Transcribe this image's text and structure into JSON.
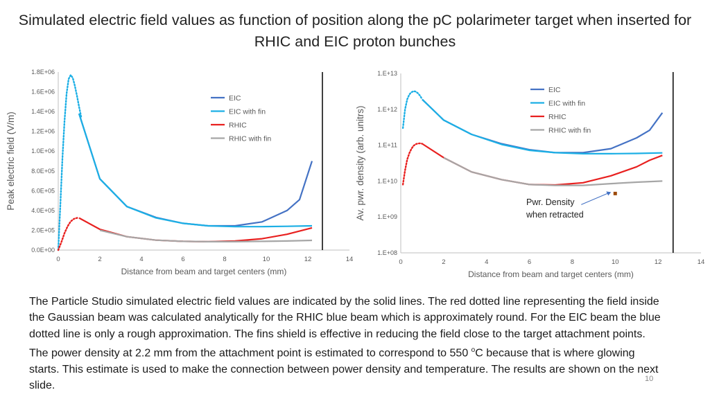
{
  "slide": {
    "title": "Simulated electric field values as function of position along the pC polarimeter target when inserted for RHIC and EIC proton bunches",
    "body_pre": "The Particle Studio simulated electric field values are indicated by the solid lines. The red dotted line representing the field inside the Gaussian beam was calculated analytically for the RHIC blue beam which is approximately round. For the EIC beam the blue dotted line is only a rough approximation. The fins shield is effective in reducing the field close to the target attachment points. The power density at 2.2 mm from the attachment point is estimated to correspond to 550 ",
    "body_sup": "o",
    "body_post": "C because that is where glowing starts. This estimate is used to make the connection between power density and temperature. The results are shown on the next slide.",
    "page_number": "10"
  },
  "colors": {
    "eic": "#4472C4",
    "eic_fin": "#1CAFE5",
    "rhic": "#E8201F",
    "rhic_fin": "#A6A6A6",
    "marker": "#9C4A0A",
    "axis": "#BFBFBF",
    "target_line": "#000000"
  },
  "chart_data": [
    {
      "type": "line",
      "xlabel": "Distance from beam and target centers (mm)",
      "ylabel": "Peak electric field (V/m)",
      "xlim": [
        0,
        14
      ],
      "ylim": [
        0,
        1800000
      ],
      "xticks": [
        "0",
        "2",
        "4",
        "6",
        "8",
        "10",
        "12",
        "14"
      ],
      "yticks": [
        "0.0E+00",
        "2.0E+05",
        "4.0E+05",
        "6.0E+05",
        "8.0E+05",
        "1.0E+06",
        "1.2E+06",
        "1.4E+06",
        "1.6E+06",
        "1.8E+06"
      ],
      "vertical_line_x": 12.7,
      "legend_position": "top-right",
      "series": [
        {
          "name": "EIC",
          "color_key": "eic",
          "x": [
            1.0,
            2.0,
            3.3,
            4.7,
            6.0,
            7.2,
            8.5,
            9.8,
            11.0,
            11.6,
            12.2
          ],
          "y": [
            1380000,
            720000,
            440000,
            330000,
            270000,
            245000,
            245000,
            285000,
            400000,
            510000,
            900000
          ]
        },
        {
          "name": "EIC with fin",
          "color_key": "eic_fin",
          "x": [
            1.0,
            2.0,
            3.3,
            4.7,
            6.0,
            7.2,
            8.5,
            9.8,
            11.0,
            12.2
          ],
          "y": [
            1380000,
            720000,
            440000,
            325000,
            270000,
            245000,
            237000,
            237000,
            240000,
            245000
          ]
        },
        {
          "name": "RHIC",
          "color_key": "rhic",
          "x": [
            1.0,
            2.0,
            3.3,
            4.7,
            6.0,
            7.2,
            8.5,
            9.8,
            11.0,
            12.2
          ],
          "y": [
            325000,
            210000,
            135000,
            100000,
            88000,
            85000,
            92000,
            115000,
            160000,
            225000
          ]
        },
        {
          "name": "RHIC with fin",
          "color_key": "rhic_fin",
          "x": [
            2.0,
            3.3,
            4.7,
            6.0,
            7.2,
            8.5,
            9.8,
            11.0,
            12.2
          ],
          "y": [
            200000,
            135000,
            100000,
            88000,
            85000,
            85000,
            88000,
            92000,
            98000
          ]
        },
        {
          "name": "",
          "color_key": "eic_fin",
          "dotted": true,
          "x": [
            0,
            0.1,
            0.2,
            0.3,
            0.4,
            0.5,
            0.6,
            0.7,
            0.8,
            0.9,
            1.0,
            1.1
          ],
          "y": [
            0,
            450000,
            920000,
            1300000,
            1580000,
            1730000,
            1770000,
            1740000,
            1660000,
            1560000,
            1450000,
            1350000
          ]
        },
        {
          "name": "",
          "color_key": "rhic",
          "dotted": true,
          "x": [
            0,
            0.15,
            0.3,
            0.45,
            0.6,
            0.75,
            0.9,
            1.0
          ],
          "y": [
            0,
            80000,
            170000,
            240000,
            290000,
            315000,
            325000,
            325000
          ]
        }
      ]
    },
    {
      "type": "line",
      "xlabel": "Distance from beam and target centers (mm)",
      "ylabel": "Av. pwr. density (arb. unitrs)",
      "xlim": [
        0,
        14
      ],
      "ylim": [
        100000000,
        10000000000000
      ],
      "yscale": "log",
      "xticks": [
        "0",
        "2",
        "4",
        "6",
        "8",
        "10",
        "12",
        "14"
      ],
      "yticks": [
        "1.E+08",
        "1.E+09",
        "1.E+10",
        "1.E+11",
        "1.E+12",
        "1.E+13"
      ],
      "vertical_line_x": 12.7,
      "legend_position": "top-right",
      "annotation": "Pwr. Density when retracted",
      "annotation_point": {
        "x": 10.0,
        "y": 4500000000
      },
      "series": [
        {
          "name": "EIC",
          "color_key": "eic",
          "x": [
            1.0,
            2.0,
            3.3,
            4.7,
            6.0,
            7.2,
            8.5,
            9.8,
            11.0,
            11.6,
            12.2
          ],
          "y": [
            1900000000000,
            500000000000,
            200000000000,
            110000000000,
            75000000000,
            62000000000,
            62000000000,
            80000000000,
            160000000000,
            260000000000,
            800000000000
          ]
        },
        {
          "name": "EIC with fin",
          "color_key": "eic_fin",
          "x": [
            1.0,
            2.0,
            3.3,
            4.7,
            6.0,
            7.2,
            8.5,
            9.8,
            11.0,
            12.2
          ],
          "y": [
            1900000000000,
            500000000000,
            200000000000,
            105000000000,
            72000000000,
            62000000000,
            58000000000,
            58000000000,
            59000000000,
            61000000000
          ]
        },
        {
          "name": "RHIC",
          "color_key": "rhic",
          "x": [
            1.0,
            2.0,
            3.3,
            4.7,
            6.0,
            7.2,
            8.5,
            9.8,
            11.0,
            11.6,
            12.2
          ],
          "y": [
            110000000000,
            45000000000,
            18000000000,
            11000000000,
            8000000000,
            7800000000,
            9000000000,
            14000000000,
            25000000000,
            38000000000,
            52000000000
          ]
        },
        {
          "name": "RHIC with fin",
          "color_key": "rhic_fin",
          "x": [
            2.0,
            3.3,
            4.7,
            6.0,
            7.2,
            8.5,
            9.8,
            11.0,
            12.2
          ],
          "y": [
            45000000000,
            18000000000,
            11000000000,
            8000000000,
            7600000000,
            7600000000,
            8500000000,
            9300000000,
            10000000000
          ]
        },
        {
          "name": "",
          "color_key": "eic_fin",
          "dotted": true,
          "x": [
            0.1,
            0.2,
            0.3,
            0.4,
            0.5,
            0.6,
            0.7,
            0.8,
            0.9,
            1.0
          ],
          "y": [
            300000000000,
            1000000000000,
            1900000000000,
            2600000000000,
            3000000000000,
            3200000000000,
            3100000000000,
            2800000000000,
            2400000000000,
            1900000000000
          ]
        },
        {
          "name": "",
          "color_key": "rhic",
          "dotted": true,
          "x": [
            0.1,
            0.2,
            0.3,
            0.4,
            0.5,
            0.6,
            0.7,
            0.8,
            0.9,
            1.0
          ],
          "y": [
            8000000000,
            20000000000,
            40000000000,
            60000000000,
            80000000000,
            97000000000,
            107000000000,
            112000000000,
            113000000000,
            110000000000
          ]
        }
      ]
    }
  ]
}
